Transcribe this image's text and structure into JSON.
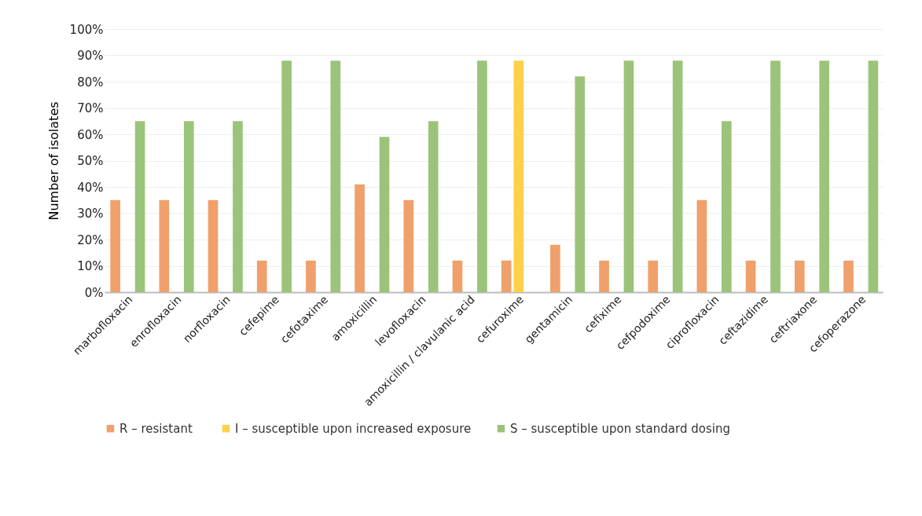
{
  "chart_data": {
    "type": "bar",
    "ylabel": "Number of isolates",
    "categories": [
      "marbofloxacin",
      "enrofloxacin",
      "norfloxacin",
      "cefepime",
      "cefotaxime",
      "amoxicillin",
      "levofloxacin",
      "amoxicillin / clavulanic acid",
      "cefuroxime",
      "gentamicin",
      "cefixime",
      "cefpodoxime",
      "ciprofloxacin",
      "ceftazidime",
      "ceftriaxone",
      "cefoperazone"
    ],
    "series": [
      {
        "name": "R  – resistant",
        "color": "#f0a06a",
        "values": [
          35,
          35,
          35,
          12,
          12,
          41,
          35,
          12,
          12,
          18,
          12,
          12,
          35,
          12,
          12,
          12
        ]
      },
      {
        "name": "I – susceptible upon increased exposure",
        "color": "#ffd04a",
        "values": [
          null,
          null,
          null,
          null,
          null,
          null,
          null,
          null,
          88,
          null,
          null,
          null,
          null,
          null,
          null,
          null
        ]
      },
      {
        "name": "S – susceptible upon standard dosing",
        "color": "#9bc47a",
        "values": [
          65,
          65,
          65,
          88,
          88,
          59,
          65,
          88,
          null,
          82,
          88,
          88,
          65,
          88,
          88,
          88
        ]
      }
    ],
    "ylim": [
      0,
      100
    ],
    "yticks": [
      {
        "value": 0,
        "label": "0%"
      },
      {
        "value": 10,
        "label": "10%"
      },
      {
        "value": 20,
        "label": "20%"
      },
      {
        "value": 30,
        "label": "30%"
      },
      {
        "value": 40,
        "label": "40%"
      },
      {
        "value": 50,
        "label": "50%"
      },
      {
        "value": 60,
        "label": "60%"
      },
      {
        "value": 70,
        "label": "70%"
      },
      {
        "value": 80,
        "label": "80%"
      },
      {
        "value": 90,
        "label": "90%"
      },
      {
        "value": 100,
        "label": "100%"
      }
    ],
    "grid": "y",
    "legend": "bottom"
  }
}
